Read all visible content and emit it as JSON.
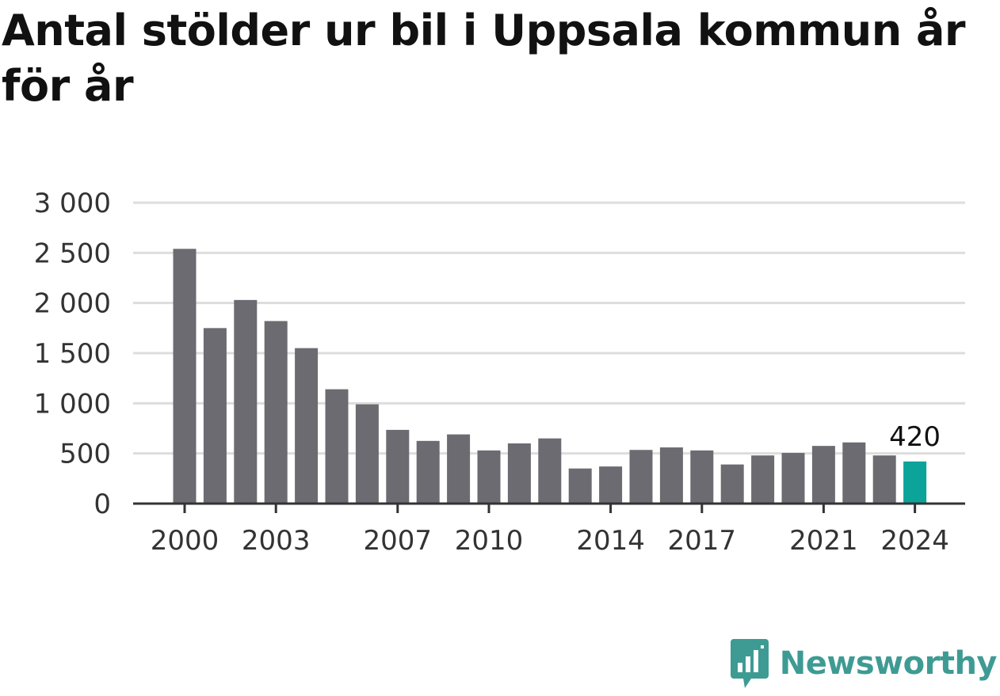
{
  "title": "Antal stölder ur bil i Uppsala kommun år för år",
  "brand": "Newsworthy",
  "colors": {
    "bar": "#6c6b71",
    "highlight": "#0ba39a",
    "grid": "#dddddd",
    "axis": "#333333",
    "brand": "#3e9b93"
  },
  "chart_data": {
    "type": "bar",
    "title": "Antal stölder ur bil i Uppsala kommun år för år",
    "xlabel": "",
    "ylabel": "",
    "categories": [
      2000,
      2001,
      2002,
      2003,
      2004,
      2005,
      2006,
      2007,
      2008,
      2009,
      2010,
      2011,
      2012,
      2013,
      2014,
      2015,
      2016,
      2017,
      2018,
      2019,
      2020,
      2021,
      2022,
      2023,
      2024
    ],
    "values": [
      2540,
      1750,
      2030,
      1820,
      1550,
      1140,
      990,
      735,
      625,
      690,
      530,
      600,
      650,
      350,
      370,
      535,
      560,
      530,
      390,
      480,
      505,
      575,
      610,
      480,
      420
    ],
    "x_tick_labels": [
      "2000",
      "2003",
      "2007",
      "2010",
      "2014",
      "2017",
      "2021",
      "2024"
    ],
    "y_ticks": [
      0,
      500,
      1000,
      1500,
      2000,
      2500,
      3000
    ],
    "y_tick_labels": [
      "0",
      "500",
      "1 000",
      "1 500",
      "2 000",
      "2 500",
      "3 000"
    ],
    "ylim": [
      0,
      3000
    ],
    "grid": true,
    "highlight": {
      "category": 2024,
      "label": "420"
    }
  }
}
